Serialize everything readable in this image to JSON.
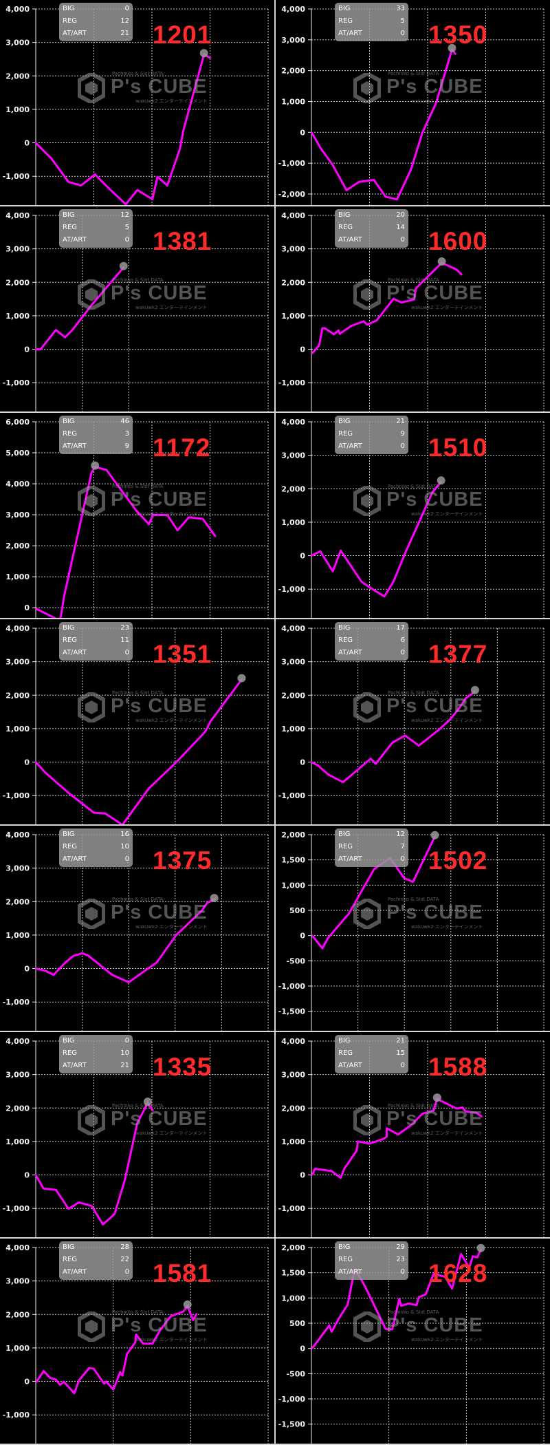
{
  "stat_labels": {
    "big": "BIG",
    "reg": "REG",
    "art": "AT/ART"
  },
  "watermark": {
    "top": "Pachinko & Slot DATA",
    "main": "P's CUBE",
    "sub": "wakuwk2 エンターテインメント"
  },
  "colors": {
    "line": "#ff00ff",
    "machine_number": "#ff2a2a",
    "background": "#000000",
    "grid": "#cfcfcf",
    "marker": "#9a9a9a"
  },
  "chart_data": [
    {
      "type": "line",
      "machine": "1201",
      "big": "0",
      "reg": "12",
      "art": "21",
      "ylim": [
        -1880,
        4000
      ],
      "yticks": [
        4000,
        3000,
        2000,
        1000,
        0,
        -1000
      ],
      "ytick_labels": [
        "4,000",
        "3,000",
        "2,000",
        "1,000",
        "0",
        "-1,000"
      ],
      "xlim": [
        0,
        100
      ],
      "xgrid": [
        25,
        50,
        75
      ],
      "grid": true,
      "marker_index": 13,
      "x": [
        0,
        6.7,
        14.1,
        19.5,
        25.5,
        31.9,
        38.8,
        43.7,
        50.2,
        52.4,
        56.6,
        62.0,
        63.5,
        72.4,
        75.1
      ],
      "y": [
        0,
        -466,
        -1171,
        -1274,
        -945,
        -1390,
        -1836,
        -1411,
        -1685,
        -1014,
        -1274,
        -192,
        356,
        2637,
        2534
      ]
    },
    {
      "type": "line",
      "machine": "1350",
      "big": "33",
      "reg": "5",
      "art": "0",
      "ylim": [
        -2380,
        4000
      ],
      "yticks": [
        4000,
        3000,
        2000,
        1000,
        0,
        -1000,
        -2000
      ],
      "ytick_labels": [
        "4,000",
        "3,000",
        "2,000",
        "1,000",
        "0",
        "-1,000",
        "-2,000"
      ],
      "xlim": [
        0,
        100
      ],
      "xgrid": [
        25,
        50,
        75
      ],
      "grid": true,
      "marker_index": 11,
      "x": [
        0,
        4.2,
        9.2,
        15.1,
        20.5,
        26.9,
        31.9,
        36.8,
        42.8,
        47.7,
        53.6,
        60.5,
        62.0
      ],
      "y": [
        0,
        -542,
        -1061,
        -1878,
        -1603,
        -1544,
        -2085,
        -2174,
        -1210,
        -22,
        943,
        2686,
        2538
      ]
    },
    {
      "type": "line",
      "machine": "1381",
      "big": "12",
      "reg": "5",
      "art": "0",
      "ylim": [
        -1880,
        4000
      ],
      "yticks": [
        4000,
        3000,
        2000,
        1000,
        0,
        -1000
      ],
      "ytick_labels": [
        "4,000",
        "3,000",
        "2,000",
        "1,000",
        "0",
        "-1,000"
      ],
      "xlim": [
        0,
        100
      ],
      "xgrid": [
        20,
        40
      ],
      "grid": true,
      "marker_index": 6,
      "x": [
        0,
        2.1,
        8.7,
        12.6,
        15.6,
        24.0,
        37.8
      ],
      "y": [
        0,
        0,
        575,
        356,
        562,
        1315,
        2445
      ]
    },
    {
      "type": "line",
      "machine": "1600",
      "big": "20",
      "reg": "14",
      "art": "0",
      "ylim": [
        -1880,
        4000
      ],
      "yticks": [
        4000,
        3000,
        2000,
        1000,
        0,
        -1000
      ],
      "ytick_labels": [
        "4,000",
        "3,000",
        "2,000",
        "1,000",
        "0",
        "-1,000"
      ],
      "xlim": [
        0,
        100
      ],
      "xgrid": [
        25,
        50,
        75
      ],
      "grid": true,
      "marker_index": 15,
      "x": [
        0.3,
        3.3,
        4.7,
        5.7,
        9.7,
        11.7,
        12.2,
        17.1,
        22.5,
        24.0,
        28.0,
        35.3,
        38.8,
        44.2,
        44.9,
        56.1,
        62.5,
        64.7
      ],
      "y": [
        -123,
        116,
        630,
        630,
        445,
        562,
        459,
        699,
        836,
        733,
        856,
        1507,
        1397,
        1486,
        1815,
        2582,
        2377,
        2226
      ]
    },
    {
      "type": "line",
      "machine": "1172",
      "big": "46",
      "reg": "3",
      "art": "9",
      "ylim": [
        -350,
        6000
      ],
      "yticks": [
        6000,
        5000,
        4000,
        3000,
        2000,
        1000,
        0
      ],
      "ytick_labels": [
        "6,000",
        "5,000",
        "4,000",
        "3,000",
        "2,000",
        "1,000",
        "0"
      ],
      "xlim": [
        0,
        100
      ],
      "xgrid": [
        25,
        50,
        75
      ],
      "grid": true,
      "marker_index": 5,
      "x": [
        0.3,
        9.2,
        10.7,
        12.2,
        24.0,
        25.5,
        30.4,
        43.2,
        48.7,
        50.4,
        56.6,
        61.0,
        65.9,
        71.9,
        77.3
      ],
      "y": [
        -37,
        -370,
        -333,
        369,
        4360,
        4544,
        4448,
        3140,
        2697,
        2993,
        2993,
        2498,
        2919,
        2867,
        2305
      ]
    },
    {
      "type": "line",
      "machine": "1510",
      "big": "21",
      "reg": "9",
      "art": "0",
      "ylim": [
        -1880,
        4000
      ],
      "yticks": [
        4000,
        3000,
        2000,
        1000,
        0,
        -1000
      ],
      "ytick_labels": [
        "4,000",
        "3,000",
        "2,000",
        "1,000",
        "0",
        "-1,000"
      ],
      "xlim": [
        0,
        100
      ],
      "xgrid": [
        25,
        50,
        75
      ],
      "grid": true,
      "marker_index": 10,
      "x": [
        0,
        3.8,
        9.2,
        12.6,
        21.5,
        25.0,
        31.4,
        35.3,
        40.8,
        52.1,
        55.8
      ],
      "y": [
        0,
        130,
        -466,
        151,
        -774,
        -945,
        -1219,
        -774,
        151,
        1897,
        2205
      ]
    },
    {
      "type": "line",
      "machine": "1351",
      "big": "23",
      "reg": "11",
      "art": "0",
      "ylim": [
        -1880,
        4000
      ],
      "yticks": [
        4000,
        3000,
        2000,
        1000,
        0,
        -1000
      ],
      "ytick_labels": [
        "4,000",
        "3,000",
        "2,000",
        "1,000",
        "0",
        "-1,000"
      ],
      "xlim": [
        0,
        100
      ],
      "xgrid": [
        20,
        40,
        60,
        80
      ],
      "grid": true,
      "marker_index": 10,
      "x": [
        0,
        4.2,
        14.1,
        25.0,
        29.9,
        37.3,
        48.7,
        60.5,
        72.9,
        75.3,
        88.6
      ],
      "y": [
        0,
        -320,
        -920,
        -1513,
        -1533,
        -1874,
        -784,
        0,
        906,
        1227,
        2467
      ]
    },
    {
      "type": "line",
      "machine": "1377",
      "big": "17",
      "reg": "6",
      "art": "0",
      "ylim": [
        -1880,
        4000
      ],
      "yticks": [
        4000,
        3000,
        2000,
        1000,
        0,
        -1000
      ],
      "ytick_labels": [
        "4,000",
        "3,000",
        "2,000",
        "1,000",
        "0",
        "-1,000"
      ],
      "xlim": [
        0,
        100
      ],
      "xgrid": [
        20,
        40,
        60,
        80
      ],
      "grid": true,
      "marker_index": 13,
      "x": [
        0,
        2.8,
        7.3,
        13.6,
        25.5,
        27.7,
        34.8,
        40.3,
        46.2,
        54.6,
        59.5,
        63.5,
        66.4,
        70.4
      ],
      "y": [
        0,
        -102,
        -375,
        -600,
        102,
        -48,
        579,
        797,
        491,
        954,
        1261,
        1601,
        1908,
        2112
      ]
    },
    {
      "type": "line",
      "machine": "1375",
      "big": "16",
      "reg": "10",
      "art": "0",
      "ylim": [
        -1880,
        4000
      ],
      "yticks": [
        4000,
        3000,
        2000,
        1000,
        0,
        -1000
      ],
      "ytick_labels": [
        "4,000",
        "3,000",
        "2,000",
        "1,000",
        "0",
        "-1,000"
      ],
      "xlim": [
        0,
        100
      ],
      "xgrid": [
        20,
        40,
        60,
        80
      ],
      "grid": true,
      "marker_index": 13,
      "x": [
        0,
        4.2,
        7.7,
        12.1,
        16.1,
        20.0,
        22.5,
        32.9,
        40.0,
        52.1,
        60.5,
        71.4,
        73.8,
        76.8
      ],
      "y": [
        0,
        -68,
        -191,
        137,
        376,
        458,
        390,
        -191,
        -410,
        185,
        1005,
        1723,
        1962,
        2065
      ]
    },
    {
      "type": "line",
      "machine": "1502",
      "big": "12",
      "reg": "7",
      "art": "0",
      "ylim": [
        -1900,
        2000
      ],
      "yticks": [
        2000,
        1500,
        1000,
        500,
        0,
        -500,
        -1000,
        -1500
      ],
      "ytick_labels": [
        "2,000",
        "1,500",
        "1,000",
        "500",
        "0",
        "-500",
        "-1,000",
        "-1,500"
      ],
      "xlim": [
        0,
        100
      ],
      "xgrid": [
        20,
        40,
        60,
        80
      ],
      "grid": true,
      "marker_index": 8,
      "x": [
        0.3,
        4.7,
        7.2,
        16.1,
        26.9,
        33.9,
        39.8,
        43.7,
        53.1
      ],
      "y": [
        0,
        -251,
        -46,
        434,
        1311,
        1539,
        1142,
        1064,
        1963
      ]
    },
    {
      "type": "line",
      "machine": "1335",
      "big": "0",
      "reg": "10",
      "art": "21",
      "ylim": [
        -1880,
        4000
      ],
      "yticks": [
        4000,
        3000,
        2000,
        1000,
        0,
        -1000
      ],
      "ytick_labels": [
        "4,000",
        "3,000",
        "2,000",
        "1,000",
        "0",
        "-1,000"
      ],
      "xlim": [
        0,
        100
      ],
      "xgrid": [
        25,
        50,
        75
      ],
      "grid": true,
      "marker_index": 10,
      "x": [
        0,
        3.3,
        8.7,
        14.1,
        18.6,
        24.0,
        28.9,
        33.9,
        38.3,
        43.7,
        48.2,
        50.4
      ],
      "y": [
        0,
        -403,
        -444,
        -1012,
        -821,
        -923,
        -1477,
        -1169,
        -157,
        1552,
        2147,
        1928
      ]
    },
    {
      "type": "line",
      "machine": "1588",
      "big": "21",
      "reg": "15",
      "art": "0",
      "ylim": [
        -1880,
        4000
      ],
      "yticks": [
        4000,
        3000,
        2000,
        1000,
        0,
        -1000
      ],
      "ytick_labels": [
        "4,000",
        "3,000",
        "2,000",
        "1,000",
        "0",
        "-1,000"
      ],
      "xlim": [
        0,
        100
      ],
      "xgrid": [
        25,
        50,
        75
      ],
      "grid": true,
      "marker_index": 15,
      "x": [
        0.3,
        1.5,
        8.7,
        12.6,
        14.1,
        19.5,
        20.0,
        25.0,
        30.9,
        32.4,
        32.4,
        37.3,
        42.8,
        47.7,
        52.6,
        54.1,
        62.5,
        65.0,
        66.4,
        70.9,
        73.3
      ],
      "y": [
        0,
        185,
        116,
        -89,
        185,
        732,
        1005,
        937,
        1074,
        1142,
        1395,
        1210,
        1484,
        1826,
        1928,
        2270,
        1983,
        2017,
        1894,
        1860,
        1744
      ]
    },
    {
      "type": "line",
      "machine": "1581",
      "big": "28",
      "reg": "22",
      "art": "0",
      "ylim": [
        -1880,
        4000
      ],
      "yticks": [
        4000,
        3000,
        2000,
        1000,
        0,
        -1000
      ],
      "ytick_labels": [
        "4,000",
        "3,000",
        "2,000",
        "1,000",
        "0",
        "-1,000"
      ],
      "xlim": [
        0,
        100
      ],
      "xgrid": [
        33.3,
        66.7
      ],
      "grid": true,
      "marker_index": 23,
      "x": [
        0.3,
        3.4,
        6.2,
        8.7,
        10.4,
        12.2,
        16.6,
        18.6,
        23.0,
        25.0,
        29.4,
        30.4,
        33.4,
        36.3,
        37.3,
        39.3,
        42.8,
        43.2,
        46.2,
        50.2,
        53.6,
        58.1,
        63.5,
        65.3,
        67.7,
        69.2
      ],
      "y": [
        -14,
        308,
        103,
        55,
        -103,
        -14,
        -356,
        34,
        397,
        376,
        -68,
        -14,
        -239,
        274,
        171,
        821,
        1162,
        1402,
        1128,
        1128,
        1538,
        1949,
        2085,
        2256,
        1832,
        2017
      ]
    },
    {
      "type": "line",
      "machine": "1628",
      "big": "29",
      "reg": "23",
      "art": "0",
      "ylim": [
        -1900,
        2000
      ],
      "yticks": [
        2000,
        1500,
        1000,
        500,
        0,
        -500,
        -1000,
        -1500
      ],
      "ytick_labels": [
        "2,000",
        "1,500",
        "1,000",
        "500",
        "0",
        "-500",
        "-1,000",
        "-1,500"
      ],
      "xlim": [
        0,
        100
      ],
      "xgrid": [
        33.3,
        66.7
      ],
      "grid": true,
      "marker_index": 23,
      "x": [
        0.3,
        7.7,
        8.7,
        11.7,
        15.6,
        18.6,
        22.5,
        24.0,
        31.9,
        34.8,
        37.8,
        38.6,
        41.8,
        45.2,
        46.2,
        49.2,
        52.6,
        57.6,
        60.5,
        64.4,
        67.9,
        69.4,
        71.4,
        72.9
      ],
      "y": [
        0,
        457,
        329,
        584,
        868,
        1575,
        1279,
        1142,
        388,
        379,
        982,
        845,
        890,
        858,
        1014,
        1073,
        1484,
        1416,
        1187,
        1872,
        1598,
        1826,
        1804,
        1963
      ]
    }
  ]
}
